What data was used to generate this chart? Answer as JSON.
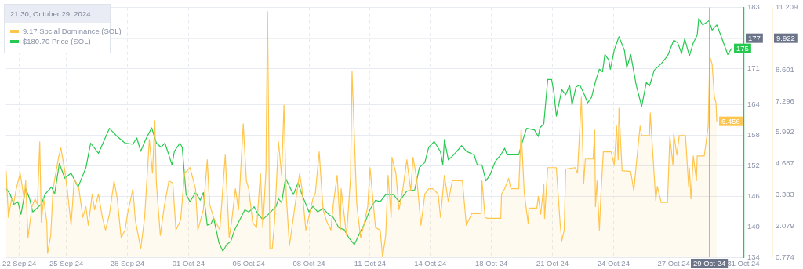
{
  "chart_data": {
    "type": "line",
    "legend": "top left",
    "legend_title": "21:30, October 29, 2024",
    "grid": true,
    "xlim": [
      "2024-09-22T11:00",
      "2024-10-31T18:00"
    ],
    "xticks": [
      {
        "value": "2024-09-23T04:00",
        "label": "22 Sep 24"
      },
      {
        "value": "2024-09-25T16:00",
        "label": "25 Sep 24"
      },
      {
        "value": "2024-09-28T22:00",
        "label": "28 Sep 24"
      },
      {
        "value": "2024-10-02T04:00",
        "label": "01 Oct 24"
      },
      {
        "value": "2024-10-05T09:00",
        "label": "05 Oct 24"
      },
      {
        "value": "2024-10-08T14:00",
        "label": "08 Oct 24"
      },
      {
        "value": "2024-10-11T20:00",
        "label": "11 Oct 24"
      },
      {
        "value": "2024-10-15T01:00",
        "label": "14 Oct 24"
      },
      {
        "value": "2024-10-18T07:00",
        "label": "18 Oct 24"
      },
      {
        "value": "2024-10-21T13:00",
        "label": "21 Oct 24"
      },
      {
        "value": "2024-10-24T19:00",
        "label": "24 Oct 24"
      },
      {
        "value": "2024-10-28T00:00",
        "label": "27 Oct 24"
      },
      {
        "value": "2024-10-31T17:00",
        "label": "31 Oct 24"
      }
    ],
    "ylim": [
      0.774,
      11.209
    ],
    "yticks": [
      0.774,
      2.079,
      3.383,
      4.687,
      5.992,
      7.296,
      8.601,
      11.209
    ],
    "y2lim": [
      134,
      183
    ],
    "y2ticks": [
      134,
      140,
      146,
      152,
      158,
      164,
      171,
      183
    ],
    "ref_lines": [
      {
        "axis": "x",
        "value": "2024-10-29T21:30",
        "label": "29 Oct 24"
      },
      {
        "axis": "y2",
        "value": 177,
        "label": "177"
      }
    ],
    "annotations": [
      "9.922"
    ],
    "series": [
      {
        "name": "9.17 Social Dominance (SOL)",
        "type": "area",
        "axis": "y",
        "color": "#ffc54d",
        "x": [
          "2024-09-22T11:00",
          "2024-09-22T14:00",
          "2024-09-22T18:00",
          "2024-09-22T21:00",
          "2024-09-23T00:00",
          "2024-09-23T05:00",
          "2024-09-23T10:00",
          "2024-09-23T12:00",
          "2024-09-23T15:00",
          "2024-09-23T20:00",
          "2024-09-24T00:00",
          "2024-09-24T03:00",
          "2024-09-24T06:00",
          "2024-09-24T08:00",
          "2024-09-24T11:00",
          "2024-09-24T15:00",
          "2024-09-24T16:00",
          "2024-09-24T20:00",
          "2024-09-24T23:00",
          "2024-09-25T06:00",
          "2024-09-25T09:00",
          "2024-09-25T14:00",
          "2024-09-25T17:00",
          "2024-09-25T22:00",
          "2024-09-26T02:00",
          "2024-09-26T05:00",
          "2024-09-26T08:00",
          "2024-09-26T13:00",
          "2024-09-26T17:00",
          "2024-09-26T20:00",
          "2024-09-27T01:00",
          "2024-09-27T04:00",
          "2024-09-27T09:00",
          "2024-09-27T14:00",
          "2024-09-27T18:00",
          "2024-09-27T23:00",
          "2024-09-28T05:00",
          "2024-09-28T09:00",
          "2024-09-28T14:00",
          "2024-09-28T19:00",
          "2024-09-28T22:00",
          "2024-09-29T05:00",
          "2024-09-29T08:00",
          "2024-09-29T15:00",
          "2024-09-29T20:00",
          "2024-09-30T02:00",
          "2024-09-30T06:00",
          "2024-09-30T09:00",
          "2024-09-30T11:00",
          "2024-09-30T16:00",
          "2024-09-30T21:00",
          "2024-10-01T03:00",
          "2024-10-01T08:00",
          "2024-10-01T12:00",
          "2024-10-01T18:00",
          "2024-10-01T23:00",
          "2024-10-02T06:00",
          "2024-10-02T13:00",
          "2024-10-02T16:00",
          "2024-10-02T23:00",
          "2024-10-03T04:00",
          "2024-10-03T07:00",
          "2024-10-03T12:00",
          "2024-10-03T20:00",
          "2024-10-04T03:00",
          "2024-10-04T08:00",
          "2024-10-04T11:00",
          "2024-10-04T16:00",
          "2024-10-04T20:00",
          "2024-10-05T02:00",
          "2024-10-05T06:00",
          "2024-10-05T09:00",
          "2024-10-05T14:00",
          "2024-10-05T19:00",
          "2024-10-06T00:00",
          "2024-10-06T03:00",
          "2024-10-06T07:00",
          "2024-10-06T09:00",
          "2024-10-06T12:00",
          "2024-10-06T15:00",
          "2024-10-06T18:00",
          "2024-10-06T23:00",
          "2024-10-07T03:00",
          "2024-10-07T06:00",
          "2024-10-07T09:00",
          "2024-10-07T13:00",
          "2024-10-07T18:00",
          "2024-10-08T02:00",
          "2024-10-08T05:00",
          "2024-10-08T10:00",
          "2024-10-08T19:00",
          "2024-10-08T22:00",
          "2024-10-09T03:00",
          "2024-10-09T08:00",
          "2024-10-09T13:00",
          "2024-10-09T18:00",
          "2024-10-09T21:00",
          "2024-10-10T02:00",
          "2024-10-10T06:00",
          "2024-10-10T07:00",
          "2024-10-10T14:00",
          "2024-10-10T19:00",
          "2024-10-10T21:00",
          "2024-10-11T03:00",
          "2024-10-11T08:00",
          "2024-10-11T12:00",
          "2024-10-11T17:00",
          "2024-10-11T20:00",
          "2024-10-12T03:00",
          "2024-10-12T09:00",
          "2024-10-12T12:00",
          "2024-10-12T16:00",
          "2024-10-12T19:00",
          "2024-10-12T23:00",
          "2024-10-13T00:00",
          "2024-10-13T05:00",
          "2024-10-13T09:00",
          "2024-10-13T14:00",
          "2024-10-13T19:00",
          "2024-10-14T00:00",
          "2024-10-14T03:00",
          "2024-10-14T08:00",
          "2024-10-14T13:00",
          "2024-10-14T18:00",
          "2024-10-14T23:00",
          "2024-10-15T04:00",
          "2024-10-15T11:00",
          "2024-10-15T14:00",
          "2024-10-15T19:00",
          "2024-10-16T00:00",
          "2024-10-16T05:00",
          "2024-10-16T18:00",
          "2024-10-16T23:00",
          "2024-10-17T06:00",
          "2024-10-17T18:00",
          "2024-10-17T19:00",
          "2024-10-17T23:00",
          "2024-10-18T02:00",
          "2024-10-18T19:00",
          "2024-10-18T20:00",
          "2024-10-19T00:00",
          "2024-10-19T05:00",
          "2024-10-19T08:00",
          "2024-10-19T18:00",
          "2024-10-19T21:00",
          "2024-10-20T01:00",
          "2024-10-20T06:00",
          "2024-10-20T07:00",
          "2024-10-20T17:00",
          "2024-10-20T19:00",
          "2024-10-20T22:00",
          "2024-10-21T02:00",
          "2024-10-21T03:00",
          "2024-10-21T07:00",
          "2024-10-21T18:00",
          "2024-10-21T23:00",
          "2024-10-22T01:00",
          "2024-10-22T04:00",
          "2024-10-22T06:00",
          "2024-10-22T18:00",
          "2024-10-22T21:00",
          "2024-10-23T02:00",
          "2024-10-23T05:00",
          "2024-10-23T07:00",
          "2024-10-23T17:00",
          "2024-10-23T19:00",
          "2024-10-23T20:00",
          "2024-10-23T22:00",
          "2024-10-24T01:00",
          "2024-10-24T03:00",
          "2024-10-24T06:00",
          "2024-10-24T16:00",
          "2024-10-24T20:00",
          "2024-10-24T23:00",
          "2024-10-25T01:00",
          "2024-10-25T02:00",
          "2024-10-25T06:00",
          "2024-10-25T17:00",
          "2024-10-25T21:00",
          "2024-10-26T00:00",
          "2024-10-26T05:00",
          "2024-10-26T07:00",
          "2024-10-26T17:00",
          "2024-10-26T18:00",
          "2024-10-27T01:00",
          "2024-10-27T03:00",
          "2024-10-27T08:00",
          "2024-10-27T16:00",
          "2024-10-27T19:00",
          "2024-10-27T23:00",
          "2024-10-28T00:00",
          "2024-10-28T04:00",
          "2024-10-28T07:00",
          "2024-10-28T15:00",
          "2024-10-28T19:00",
          "2024-10-28T20:00",
          "2024-10-28T22:00",
          "2024-10-29T01:00",
          "2024-10-29T05:00",
          "2024-10-29T06:00",
          "2024-10-29T15:00",
          "2024-10-29T20:00",
          "2024-10-29T22:00",
          "2024-10-30T01:00",
          "2024-10-30T04:00",
          "2024-10-30T06:00",
          "2024-10-30T07:00"
        ],
        "values": [
          4.39,
          2.44,
          3.22,
          3.09,
          3.64,
          4.29,
          3.22,
          3.97,
          1.59,
          2.89,
          3.22,
          2.99,
          5.6,
          2.24,
          3.22,
          2.24,
          0.94,
          1.69,
          3.64,
          4.95,
          5.34,
          4.39,
          3.64,
          2.11,
          4.03,
          3.87,
          3.64,
          2.44,
          2.89,
          2.11,
          3.42,
          2.76,
          3.42,
          2.44,
          1.91,
          2.57,
          3.97,
          3.22,
          1.59,
          1.91,
          2.57,
          3.64,
          2.34,
          1.13,
          2.44,
          5.7,
          4.29,
          6.48,
          3.87,
          1.69,
          2.89,
          3.97,
          3.87,
          1.91,
          2.34,
          4.29,
          4.52,
          3.64,
          1.91,
          2.76,
          4.85,
          2.99,
          2.44,
          1.91,
          5.05,
          1.59,
          2.24,
          3.64,
          2.76,
          6.35,
          3.97,
          3.64,
          2.24,
          2.01,
          4.29,
          2.01,
          4.39,
          11.05,
          1.13,
          1.13,
          2.24,
          5.6,
          4.2,
          7.13,
          3.32,
          1.26,
          2.44,
          4.29,
          3.64,
          1.91,
          3.22,
          3.42,
          5.18,
          2.76,
          2.24,
          1.91,
          2.99,
          4.2,
          1.91,
          3.64,
          1.69,
          4.07,
          8.53,
          2.99,
          1.59,
          2.11,
          2.89,
          4.52,
          2.01,
          1.91,
          0.78,
          1.69,
          4.2,
          2.44,
          4.95,
          4.29,
          2.76,
          3.64,
          4.85,
          3.55,
          4.95,
          3.97,
          2.11,
          3.42,
          3.64,
          3.64,
          3.42,
          2.44,
          4.2,
          3.09,
          3.97,
          3.97,
          2.11,
          2.6,
          2.6,
          3.97,
          2.44,
          2.4,
          2.4,
          3.42,
          3.64,
          4.07,
          3.64,
          3.64,
          6.15,
          3.48,
          2.18,
          2.83,
          2.83,
          3.32,
          2.57,
          3.81,
          2.4,
          4.52,
          4.52,
          2.11,
          1.46,
          1.91,
          4.46,
          4.52,
          4.29,
          7.46,
          3.87,
          4.88,
          4.88,
          6.09,
          2.89,
          3.97,
          1.91,
          3.42,
          5.18,
          5.18,
          4.62,
          6.25,
          4.85,
          7.0,
          4.39,
          4.36,
          3.55,
          4.62,
          6.25,
          5.86,
          5.86,
          6.81,
          3.15,
          3.74,
          3.06,
          3.06,
          5.83,
          4.62,
          5.93,
          5.05,
          5.86,
          5.86,
          3.74,
          4.52,
          3.22,
          5.01,
          3.97,
          5.01,
          5.01,
          6.25,
          9.17,
          8.86,
          7.46,
          7.23,
          6.456
        ],
        "value_labels": [
          null,
          null,
          null,
          null,
          null,
          null,
          null,
          null,
          null,
          null,
          null,
          null,
          null,
          null,
          null,
          null,
          null,
          null,
          null,
          null,
          null,
          null,
          null,
          null,
          null,
          null,
          null,
          null,
          null,
          null,
          null,
          null,
          null,
          null,
          null,
          null,
          null,
          null,
          null,
          null,
          null,
          null,
          null,
          null,
          null,
          null,
          null,
          null,
          null,
          null,
          null,
          null,
          null,
          null,
          null,
          null,
          null,
          null,
          null,
          null,
          null,
          null,
          null,
          null,
          null,
          null,
          null,
          null,
          null,
          null,
          null,
          null,
          null,
          null,
          null,
          null,
          null,
          null,
          null,
          null,
          null,
          null,
          null,
          null,
          null,
          null,
          null,
          null,
          null,
          null,
          null,
          null,
          null,
          null,
          null,
          null,
          null,
          null,
          null,
          null,
          null,
          null,
          null,
          null,
          null,
          null,
          null,
          null,
          null,
          null,
          null,
          null,
          null,
          null,
          null,
          null,
          null,
          null,
          null,
          null,
          null,
          null,
          null,
          null,
          null,
          null,
          null,
          null,
          null,
          null,
          null,
          null,
          null,
          null,
          null,
          null,
          null,
          null,
          null,
          null,
          null,
          null,
          null,
          null,
          null,
          null,
          null,
          null,
          null,
          null,
          null,
          null,
          null,
          null,
          null,
          null,
          null,
          null,
          null,
          null,
          null,
          null,
          null,
          null,
          null,
          null,
          null,
          null,
          null,
          null,
          null,
          null,
          null,
          null,
          null,
          null,
          null,
          null,
          null,
          null,
          null,
          null,
          null,
          null,
          null,
          null,
          null,
          null,
          null,
          null,
          null,
          null,
          null,
          null,
          null,
          null,
          null,
          null,
          null,
          null,
          null,
          null,
          null,
          null,
          null,
          null,
          "6.456"
        ]
      },
      {
        "name": "$180.70 Price (SOL)",
        "type": "line",
        "axis": "y2",
        "color": "#26c94f",
        "x": [
          "2024-09-22T11:00",
          "2024-09-22T16:00",
          "2024-09-22T21:00",
          "2024-09-23T02:00",
          "2024-09-23T06:00",
          "2024-09-23T12:00",
          "2024-09-23T17:00",
          "2024-09-23T21:00",
          "2024-09-24T08:00",
          "2024-09-24T13:00",
          "2024-09-24T21:00",
          "2024-09-25T01:00",
          "2024-09-25T07:00",
          "2024-09-25T14:00",
          "2024-09-25T22:00",
          "2024-09-26T07:00",
          "2024-09-26T17:00",
          "2024-09-26T23:00",
          "2024-09-27T09:00",
          "2024-09-27T23:00",
          "2024-09-28T09:00",
          "2024-09-28T19:00",
          "2024-09-29T05:00",
          "2024-09-29T10:00",
          "2024-09-29T15:00",
          "2024-09-29T21:00",
          "2024-09-30T05:00",
          "2024-09-30T11:00",
          "2024-09-30T17:00",
          "2024-09-30T22:00",
          "2024-10-01T07:00",
          "2024-10-01T10:00",
          "2024-10-01T17:00",
          "2024-10-01T20:00",
          "2024-10-02T01:00",
          "2024-10-02T06:00",
          "2024-10-02T13:00",
          "2024-10-02T19:00",
          "2024-10-02T23:00",
          "2024-10-03T04:00",
          "2024-10-03T09:00",
          "2024-10-03T12:00",
          "2024-10-03T19:00",
          "2024-10-04T00:00",
          "2024-10-04T05:00",
          "2024-10-04T10:00",
          "2024-10-04T15:00",
          "2024-10-05T01:00",
          "2024-10-05T04:00",
          "2024-10-05T09:00",
          "2024-10-05T16:00",
          "2024-10-05T21:00",
          "2024-10-06T03:00",
          "2024-10-06T10:00",
          "2024-10-06T20:00",
          "2024-10-06T23:00",
          "2024-10-07T03:00",
          "2024-10-07T08:00",
          "2024-10-07T18:00",
          "2024-10-08T00:00",
          "2024-10-08T05:00",
          "2024-10-08T14:00",
          "2024-10-08T19:00",
          "2024-10-09T01:00",
          "2024-10-09T08:00",
          "2024-10-09T15:00",
          "2024-10-09T21:00",
          "2024-10-10T04:00",
          "2024-10-10T11:00",
          "2024-10-10T17:00",
          "2024-10-11T00:00",
          "2024-10-11T07:00",
          "2024-10-11T13:00",
          "2024-10-11T20:00",
          "2024-10-12T03:00",
          "2024-10-12T09:00",
          "2024-10-12T16:00",
          "2024-10-13T02:00",
          "2024-10-13T09:00",
          "2024-10-13T19:00",
          "2024-10-14T05:00",
          "2024-10-14T11:00",
          "2024-10-14T18:00",
          "2024-10-14T23:00",
          "2024-10-15T06:00",
          "2024-10-15T14:00",
          "2024-10-15T17:00",
          "2024-10-15T19:00",
          "2024-10-16T00:00",
          "2024-10-16T07:00",
          "2024-10-16T17:00",
          "2024-10-16T23:00",
          "2024-10-17T09:00",
          "2024-10-17T13:00",
          "2024-10-17T19:00",
          "2024-10-18T00:00",
          "2024-10-18T05:00",
          "2024-10-18T12:00",
          "2024-10-18T19:00",
          "2024-10-19T00:00",
          "2024-10-19T03:00",
          "2024-10-19T18:00",
          "2024-10-19T21:00",
          "2024-10-20T04:00",
          "2024-10-20T14:00",
          "2024-10-20T19:00",
          "2024-10-20T21:00",
          "2024-10-21T02:00",
          "2024-10-21T07:00",
          "2024-10-21T12:00",
          "2024-10-21T15:00",
          "2024-10-21T18:00",
          "2024-10-22T01:00",
          "2024-10-22T06:00",
          "2024-10-22T11:00",
          "2024-10-22T14:00",
          "2024-10-22T19:00",
          "2024-10-23T00:00",
          "2024-10-23T05:00",
          "2024-10-23T10:00",
          "2024-10-23T15:00",
          "2024-10-23T20:00",
          "2024-10-24T01:00",
          "2024-10-24T05:00",
          "2024-10-24T08:00",
          "2024-10-24T13:00",
          "2024-10-24T15:00",
          "2024-10-24T20:00",
          "2024-10-25T02:00",
          "2024-10-25T09:00",
          "2024-10-25T12:00",
          "2024-10-25T17:00",
          "2024-10-26T00:00",
          "2024-10-26T07:00",
          "2024-10-26T13:00",
          "2024-10-26T17:00",
          "2024-10-26T23:00",
          "2024-10-27T08:00",
          "2024-10-27T16:00",
          "2024-10-28T00:00",
          "2024-10-28T05:00",
          "2024-10-28T10:00",
          "2024-10-28T14:00",
          "2024-10-28T20:00",
          "2024-10-29T01:00",
          "2024-10-29T06:00",
          "2024-10-29T08:00",
          "2024-10-29T13:00",
          "2024-10-29T21:00",
          "2024-10-30T01:00",
          "2024-10-30T07:00",
          "2024-10-30T12:00",
          "2024-10-30T17:00",
          "2024-10-30T21:00",
          "2024-10-31T02:00"
        ],
        "values": [
          147.5,
          146.4,
          144.4,
          144.9,
          142.4,
          147.5,
          145.5,
          142.9,
          144.4,
          146.4,
          147.8,
          146.4,
          152.4,
          149.5,
          150.5,
          147.8,
          151.6,
          156.4,
          154.4,
          159.3,
          157.7,
          156.4,
          156.2,
          157.4,
          154.8,
          157,
          159.4,
          156.4,
          155.6,
          156.4,
          152.1,
          154.8,
          156.4,
          155.6,
          146.3,
          144.9,
          146.7,
          145.2,
          146.7,
          140.3,
          140.6,
          141.8,
          136.8,
          135.2,
          136.5,
          137.1,
          139.4,
          142.4,
          143.3,
          142.9,
          143.9,
          142.4,
          141.4,
          142.4,
          144,
          145.5,
          144.7,
          149.5,
          146.3,
          148.6,
          146.3,
          142.9,
          144,
          142.9,
          143.6,
          142.4,
          141.8,
          139.8,
          139.4,
          137.8,
          136.5,
          138.8,
          140.6,
          143.4,
          145.2,
          144.9,
          146.3,
          146.3,
          144.9,
          147,
          147.2,
          151.6,
          152.6,
          155.6,
          156.7,
          154.7,
          152.1,
          157.1,
          153.1,
          154.1,
          155.9,
          154.8,
          154.1,
          152.1,
          152.1,
          149,
          150.1,
          152.8,
          154.1,
          155.4,
          154.1,
          154.1,
          155.9,
          159.3,
          159,
          157.7,
          159.4,
          160.2,
          168.9,
          168.9,
          166.2,
          161.7,
          166.9,
          165.9,
          167.8,
          163.9,
          167.4,
          167.8,
          166.2,
          164.3,
          165.4,
          168.5,
          170.9,
          170.4,
          173.8,
          172.7,
          170.9,
          174.7,
          177.3,
          174.6,
          171.2,
          173.8,
          167.8,
          163.6,
          168.3,
          167.6,
          170.7,
          172,
          173.5,
          176.6,
          176.1,
          174,
          176.9,
          173.5,
          176.1,
          177.6,
          180.9,
          179.6,
          180.4,
          178.6,
          179.6,
          177.6,
          175.5,
          173.8,
          175
        ],
        "value_labels": [
          null,
          null,
          null,
          null,
          null,
          null,
          null,
          null,
          null,
          null,
          null,
          null,
          null,
          null,
          null,
          null,
          null,
          null,
          null,
          null,
          null,
          null,
          null,
          null,
          null,
          null,
          null,
          null,
          null,
          null,
          null,
          null,
          null,
          null,
          null,
          null,
          null,
          null,
          null,
          null,
          null,
          null,
          null,
          null,
          null,
          null,
          null,
          null,
          null,
          null,
          null,
          null,
          null,
          null,
          null,
          null,
          null,
          null,
          null,
          null,
          null,
          null,
          null,
          null,
          null,
          null,
          null,
          null,
          null,
          null,
          null,
          null,
          null,
          null,
          null,
          null,
          null,
          null,
          null,
          null,
          null,
          null,
          null,
          null,
          null,
          null,
          null,
          null,
          null,
          null,
          null,
          null,
          null,
          null,
          null,
          null,
          null,
          null,
          null,
          null,
          null,
          null,
          null,
          null,
          null,
          null,
          null,
          null,
          null,
          null,
          null,
          null,
          null,
          null,
          null,
          null,
          null,
          null,
          null,
          null,
          null,
          null,
          null,
          null,
          null,
          null,
          null,
          null,
          null,
          null,
          null,
          null,
          null,
          null,
          null,
          null,
          null,
          null,
          null,
          null,
          null,
          null,
          null,
          null,
          null,
          null,
          null,
          null,
          null,
          null,
          null,
          null,
          null,
          null,
          "175"
        ]
      }
    ]
  }
}
